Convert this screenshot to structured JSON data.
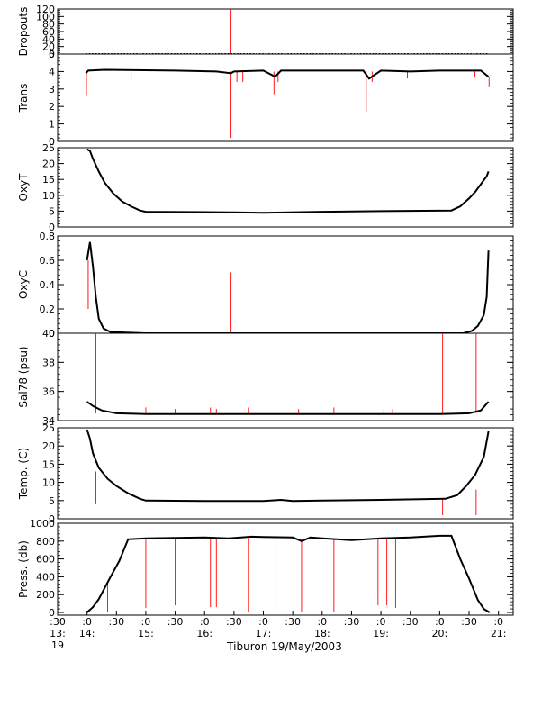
{
  "chart_data": {
    "type": "line",
    "xlabel": "Tiburon 19/May/2003",
    "x_range_hours": [
      13.5,
      21.25
    ],
    "x_ticks": [
      {
        "t": 13.5,
        "line1": ":30",
        "line2": "13:",
        "line3": "19"
      },
      {
        "t": 14.0,
        "line1": ":0",
        "line2": "14:",
        "line3": ""
      },
      {
        "t": 14.5,
        "line1": ":30",
        "line2": "",
        "line3": ""
      },
      {
        "t": 15.0,
        "line1": ":0",
        "line2": "15:",
        "line3": ""
      },
      {
        "t": 15.5,
        "line1": ":30",
        "line2": "",
        "line3": ""
      },
      {
        "t": 16.0,
        "line1": ":0",
        "line2": "16:",
        "line3": ""
      },
      {
        "t": 16.5,
        "line1": ":30",
        "line2": "",
        "line3": ""
      },
      {
        "t": 17.0,
        "line1": ":0",
        "line2": "17:",
        "line3": ""
      },
      {
        "t": 17.5,
        "line1": ":30",
        "line2": "",
        "line3": ""
      },
      {
        "t": 18.0,
        "line1": ":0",
        "line2": "18:",
        "line3": ""
      },
      {
        "t": 18.5,
        "line1": ":30",
        "line2": "",
        "line3": ""
      },
      {
        "t": 19.0,
        "line1": ":0",
        "line2": "19:",
        "line3": ""
      },
      {
        "t": 19.5,
        "line1": ":30",
        "line2": "",
        "line3": ""
      },
      {
        "t": 20.0,
        "line1": ":0",
        "line2": "20:",
        "line3": ""
      },
      {
        "t": 20.5,
        "line1": ":30",
        "line2": "",
        "line3": ""
      },
      {
        "t": 21.0,
        "line1": ":0",
        "line2": "21:",
        "line3": ""
      }
    ],
    "colors": {
      "main": "#000000",
      "spike": "#ff0000",
      "axis": "#000000"
    },
    "panels": [
      {
        "ylabel": "Dropouts",
        "ylim": [
          0,
          120
        ],
        "yticks": [
          0,
          20,
          40,
          60,
          80,
          100,
          120
        ],
        "yticklabels": [
          "0",
          "20",
          "40",
          "60",
          "80",
          "100",
          "120"
        ],
        "series": [
          [
            13.98,
            0
          ],
          [
            20.83,
            0
          ]
        ],
        "spikes": [
          [
            16.45,
            0,
            120
          ]
        ],
        "dotted": true
      },
      {
        "ylabel": "Trans",
        "ylim": [
          0,
          5
        ],
        "yticks": [
          0,
          1,
          2,
          3,
          4,
          5
        ],
        "yticklabels": [
          "0",
          "1",
          "2",
          "3",
          "4",
          "5"
        ],
        "series": [
          [
            13.98,
            3.9
          ],
          [
            14.02,
            4.05
          ],
          [
            14.3,
            4.1
          ],
          [
            15.5,
            4.05
          ],
          [
            16.2,
            4.0
          ],
          [
            16.45,
            3.9
          ],
          [
            16.5,
            4.0
          ],
          [
            17.0,
            4.05
          ],
          [
            17.2,
            3.7
          ],
          [
            17.3,
            4.05
          ],
          [
            18.0,
            4.05
          ],
          [
            18.7,
            4.05
          ],
          [
            18.8,
            3.6
          ],
          [
            19.0,
            4.05
          ],
          [
            19.5,
            4.0
          ],
          [
            20.0,
            4.05
          ],
          [
            20.7,
            4.05
          ],
          [
            20.83,
            3.7
          ]
        ],
        "spikes": [
          [
            13.99,
            4.0,
            2.6
          ],
          [
            14.75,
            4.1,
            3.5
          ],
          [
            16.45,
            4.0,
            0.2
          ],
          [
            16.55,
            4.0,
            3.4
          ],
          [
            16.65,
            4.0,
            3.4
          ],
          [
            17.18,
            4.0,
            2.7
          ],
          [
            17.25,
            4.0,
            3.4
          ],
          [
            18.75,
            4.0,
            1.7
          ],
          [
            18.85,
            4.0,
            3.4
          ],
          [
            19.45,
            4.0,
            3.6
          ],
          [
            20.6,
            4.0,
            3.7
          ],
          [
            20.84,
            3.7,
            3.1
          ]
        ]
      },
      {
        "ylabel": "OxyT",
        "ylim": [
          0,
          25
        ],
        "yticks": [
          0,
          5,
          10,
          15,
          20,
          25
        ],
        "yticklabels": [
          "0",
          "5",
          "10",
          "15",
          "20",
          "25"
        ],
        "series": [
          [
            14.0,
            24.5
          ],
          [
            14.05,
            24.0
          ],
          [
            14.1,
            21.5
          ],
          [
            14.2,
            17.5
          ],
          [
            14.3,
            14.0
          ],
          [
            14.45,
            10.5
          ],
          [
            14.6,
            8.0
          ],
          [
            14.75,
            6.5
          ],
          [
            14.9,
            5.2
          ],
          [
            15.0,
            4.8
          ],
          [
            16.0,
            4.7
          ],
          [
            16.5,
            4.6
          ],
          [
            17.0,
            4.5
          ],
          [
            18.0,
            4.8
          ],
          [
            19.0,
            5.0
          ],
          [
            20.2,
            5.2
          ],
          [
            20.35,
            6.5
          ],
          [
            20.5,
            9.0
          ],
          [
            20.6,
            11.0
          ],
          [
            20.7,
            13.5
          ],
          [
            20.8,
            16.0
          ],
          [
            20.83,
            17.5
          ]
        ],
        "spikes": []
      },
      {
        "ylabel": "OxyC",
        "ylim": [
          0,
          0.8
        ],
        "yticks": [
          0,
          0.2,
          0.4,
          0.6,
          0.8
        ],
        "yticklabels": [
          "0",
          "0.2",
          "0.4",
          "0.6",
          "0.8"
        ],
        "series": [
          [
            14.0,
            0.6
          ],
          [
            14.05,
            0.75
          ],
          [
            14.1,
            0.55
          ],
          [
            14.15,
            0.3
          ],
          [
            14.2,
            0.12
          ],
          [
            14.28,
            0.04
          ],
          [
            14.4,
            0.01
          ],
          [
            15.0,
            0.0
          ],
          [
            20.0,
            0.0
          ],
          [
            20.4,
            0.0
          ],
          [
            20.55,
            0.02
          ],
          [
            20.65,
            0.06
          ],
          [
            20.75,
            0.15
          ],
          [
            20.8,
            0.3
          ],
          [
            20.83,
            0.68
          ]
        ],
        "spikes": [
          [
            14.02,
            0.6,
            0.2
          ],
          [
            16.45,
            0.0,
            0.5
          ]
        ]
      },
      {
        "ylabel": "Sal78 (psu)",
        "ylim": [
          34,
          40
        ],
        "yticks": [
          34,
          36,
          38,
          40
        ],
        "yticklabels": [
          "34",
          "36",
          "38",
          "40"
        ],
        "series": [
          [
            14.0,
            35.3
          ],
          [
            14.1,
            35.0
          ],
          [
            14.25,
            34.7
          ],
          [
            14.5,
            34.5
          ],
          [
            15.0,
            34.45
          ],
          [
            16.0,
            34.45
          ],
          [
            17.0,
            34.45
          ],
          [
            18.0,
            34.45
          ],
          [
            19.0,
            34.45
          ],
          [
            20.0,
            34.45
          ],
          [
            20.5,
            34.5
          ],
          [
            20.7,
            34.7
          ],
          [
            20.83,
            35.3
          ]
        ],
        "spikes": [
          [
            14.15,
            34.5,
            40.0
          ],
          [
            15.0,
            34.5,
            34.9
          ],
          [
            15.5,
            34.5,
            34.8
          ],
          [
            16.1,
            34.5,
            34.9
          ],
          [
            16.2,
            34.5,
            34.8
          ],
          [
            16.75,
            34.5,
            34.9
          ],
          [
            17.2,
            34.5,
            34.9
          ],
          [
            17.6,
            34.5,
            34.8
          ],
          [
            18.2,
            34.5,
            34.9
          ],
          [
            18.9,
            34.5,
            34.8
          ],
          [
            19.05,
            34.5,
            34.8
          ],
          [
            19.2,
            34.5,
            34.8
          ],
          [
            20.05,
            34.5,
            40.0
          ],
          [
            20.62,
            34.5,
            40.0
          ]
        ]
      },
      {
        "ylabel": "Temp. (C)",
        "ylim": [
          0,
          25
        ],
        "yticks": [
          0,
          5,
          10,
          15,
          20,
          25
        ],
        "yticklabels": [
          "0",
          "5",
          "10",
          "15",
          "20",
          "25"
        ],
        "series": [
          [
            14.0,
            24.5
          ],
          [
            14.05,
            22.0
          ],
          [
            14.1,
            18.0
          ],
          [
            14.2,
            14.0
          ],
          [
            14.35,
            11.0
          ],
          [
            14.5,
            9.0
          ],
          [
            14.7,
            7.0
          ],
          [
            14.9,
            5.5
          ],
          [
            15.0,
            5.0
          ],
          [
            16.0,
            4.9
          ],
          [
            17.0,
            4.9
          ],
          [
            17.3,
            5.2
          ],
          [
            17.5,
            4.9
          ],
          [
            18.0,
            5.0
          ],
          [
            19.0,
            5.2
          ],
          [
            20.1,
            5.5
          ],
          [
            20.3,
            6.5
          ],
          [
            20.45,
            9.0
          ],
          [
            20.6,
            12.0
          ],
          [
            20.75,
            17.0
          ],
          [
            20.83,
            24.0
          ]
        ],
        "spikes": [
          [
            14.15,
            13.0,
            4.0
          ],
          [
            20.05,
            5.5,
            1.0
          ],
          [
            20.62,
            8.0,
            1.0
          ]
        ]
      },
      {
        "ylabel": "Press. (db)",
        "ylim": [
          -30,
          1000
        ],
        "yticks": [
          0,
          200,
          400,
          600,
          800,
          1000
        ],
        "yticklabels": [
          "0",
          "200",
          "400",
          "600",
          "800",
          "1000"
        ],
        "series": [
          [
            14.0,
            0
          ],
          [
            14.1,
            60
          ],
          [
            14.2,
            150
          ],
          [
            14.4,
            400
          ],
          [
            14.55,
            580
          ],
          [
            14.7,
            820
          ],
          [
            15.0,
            830
          ],
          [
            16.0,
            840
          ],
          [
            16.4,
            830
          ],
          [
            16.8,
            850
          ],
          [
            17.0,
            845
          ],
          [
            17.5,
            840
          ],
          [
            17.65,
            800
          ],
          [
            17.8,
            840
          ],
          [
            18.0,
            830
          ],
          [
            18.5,
            810
          ],
          [
            19.0,
            830
          ],
          [
            19.5,
            840
          ],
          [
            20.0,
            860
          ],
          [
            20.2,
            860
          ],
          [
            20.35,
            600
          ],
          [
            20.5,
            380
          ],
          [
            20.65,
            140
          ],
          [
            20.75,
            40
          ],
          [
            20.85,
            0
          ]
        ],
        "spikes": [
          [
            14.35,
            350,
            0
          ],
          [
            15.0,
            830,
            50
          ],
          [
            15.5,
            830,
            80
          ],
          [
            16.1,
            835,
            60
          ],
          [
            16.2,
            835,
            60
          ],
          [
            16.75,
            845,
            0
          ],
          [
            17.2,
            845,
            0
          ],
          [
            17.65,
            820,
            0
          ],
          [
            18.2,
            820,
            0
          ],
          [
            18.95,
            830,
            80
          ],
          [
            19.1,
            830,
            80
          ],
          [
            19.25,
            830,
            50
          ]
        ]
      }
    ]
  }
}
